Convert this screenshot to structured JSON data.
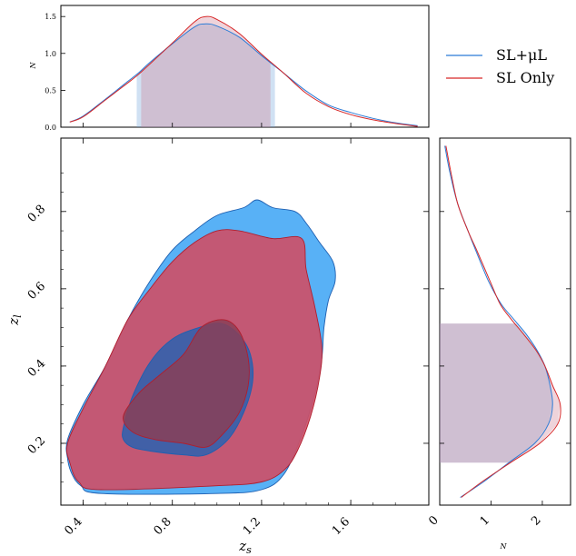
{
  "legend": {
    "items": [
      {
        "label": "SL+μL",
        "color": "#2b7bd6"
      },
      {
        "label": "SL Only",
        "color": "#d62728"
      }
    ]
  },
  "chart_data": [
    {
      "type": "line",
      "panel": "top-marginal",
      "xlim": [
        0.3,
        1.95
      ],
      "ylim": [
        0,
        1.65
      ],
      "ylabel": "N",
      "yticks": [
        "0.0",
        "0.5",
        "1.0",
        "1.5"
      ],
      "shaded_interval": {
        "SL+μL": [
          0.64,
          1.26
        ],
        "SL Only": [
          0.66,
          1.24
        ]
      },
      "series": [
        {
          "name": "SL+μL",
          "color": "#2b7bd6",
          "x": [
            0.34,
            0.4,
            0.5,
            0.6,
            0.65,
            0.7,
            0.8,
            0.9,
            0.95,
            1.0,
            1.1,
            1.2,
            1.3,
            1.4,
            1.5,
            1.6,
            1.7,
            1.8,
            1.9
          ],
          "y": [
            0.07,
            0.15,
            0.38,
            0.62,
            0.74,
            0.88,
            1.13,
            1.36,
            1.4,
            1.37,
            1.22,
            0.97,
            0.73,
            0.49,
            0.3,
            0.2,
            0.12,
            0.06,
            0.02
          ]
        },
        {
          "name": "SL Only",
          "color": "#d62728",
          "x": [
            0.34,
            0.4,
            0.5,
            0.6,
            0.65,
            0.7,
            0.8,
            0.9,
            0.95,
            1.0,
            1.1,
            1.2,
            1.3,
            1.4,
            1.5,
            1.6,
            1.7,
            1.8,
            1.9
          ],
          "y": [
            0.07,
            0.14,
            0.37,
            0.6,
            0.72,
            0.86,
            1.14,
            1.43,
            1.5,
            1.46,
            1.27,
            0.99,
            0.73,
            0.46,
            0.28,
            0.17,
            0.1,
            0.05,
            0.01
          ]
        }
      ]
    },
    {
      "type": "area",
      "panel": "joint-contours",
      "xlabel": "z_s",
      "ylabel": "z_l",
      "xlim": [
        0.3,
        1.95
      ],
      "ylim": [
        0.04,
        0.99
      ],
      "xticks": [
        "0.4",
        "0.8",
        "1.2",
        "1.6"
      ],
      "yticks": [
        "0.2",
        "0.4",
        "0.6",
        "0.8"
      ],
      "series": [
        {
          "name": "SL+μL",
          "color": "#4aaaf5",
          "level": "outer",
          "points": [
            [
              0.33,
              0.21
            ],
            [
              0.4,
              0.3
            ],
            [
              0.5,
              0.4
            ],
            [
              0.6,
              0.52
            ],
            [
              0.7,
              0.62
            ],
            [
              0.8,
              0.7
            ],
            [
              0.9,
              0.75
            ],
            [
              1.0,
              0.79
            ],
            [
              1.12,
              0.81
            ],
            [
              1.18,
              0.83
            ],
            [
              1.25,
              0.81
            ],
            [
              1.35,
              0.8
            ],
            [
              1.4,
              0.77
            ],
            [
              1.46,
              0.72
            ],
            [
              1.52,
              0.67
            ],
            [
              1.53,
              0.62
            ],
            [
              1.5,
              0.57
            ],
            [
              1.48,
              0.5
            ],
            [
              1.47,
              0.42
            ],
            [
              1.44,
              0.33
            ],
            [
              1.38,
              0.22
            ],
            [
              1.3,
              0.12
            ],
            [
              1.2,
              0.08
            ],
            [
              1.0,
              0.07
            ],
            [
              0.48,
              0.07
            ],
            [
              0.39,
              0.09
            ],
            [
              0.35,
              0.12
            ],
            [
              0.33,
              0.16
            ],
            [
              0.33,
              0.21
            ]
          ]
        },
        {
          "name": "SL Only",
          "color": "#cc5068",
          "level": "outer",
          "points": [
            [
              0.33,
              0.2
            ],
            [
              0.4,
              0.29
            ],
            [
              0.5,
              0.4
            ],
            [
              0.6,
              0.52
            ],
            [
              0.7,
              0.6
            ],
            [
              0.8,
              0.67
            ],
            [
              0.9,
              0.72
            ],
            [
              1.0,
              0.75
            ],
            [
              1.1,
              0.75
            ],
            [
              1.25,
              0.73
            ],
            [
              1.38,
              0.73
            ],
            [
              1.4,
              0.65
            ],
            [
              1.44,
              0.55
            ],
            [
              1.47,
              0.45
            ],
            [
              1.46,
              0.37
            ],
            [
              1.42,
              0.27
            ],
            [
              1.36,
              0.18
            ],
            [
              1.3,
              0.13
            ],
            [
              1.2,
              0.1
            ],
            [
              1.0,
              0.09
            ],
            [
              0.48,
              0.08
            ],
            [
              0.38,
              0.1
            ],
            [
              0.34,
              0.15
            ],
            [
              0.33,
              0.2
            ]
          ]
        },
        {
          "name": "SL+μL",
          "color": "#2a62b0",
          "level": "inner",
          "points": [
            [
              0.58,
              0.24
            ],
            [
              0.62,
              0.32
            ],
            [
              0.7,
              0.41
            ],
            [
              0.8,
              0.47
            ],
            [
              0.92,
              0.5
            ],
            [
              1.02,
              0.51
            ],
            [
              1.1,
              0.48
            ],
            [
              1.15,
              0.43
            ],
            [
              1.16,
              0.36
            ],
            [
              1.12,
              0.28
            ],
            [
              1.05,
              0.21
            ],
            [
              0.95,
              0.17
            ],
            [
              0.85,
              0.17
            ],
            [
              0.7,
              0.18
            ],
            [
              0.62,
              0.19
            ],
            [
              0.58,
              0.21
            ],
            [
              0.58,
              0.24
            ]
          ]
        },
        {
          "name": "SL Only",
          "color": "#8a3f57",
          "level": "inner",
          "points": [
            [
              0.58,
              0.27
            ],
            [
              0.65,
              0.33
            ],
            [
              0.75,
              0.38
            ],
            [
              0.85,
              0.43
            ],
            [
              0.93,
              0.5
            ],
            [
              1.03,
              0.52
            ],
            [
              1.1,
              0.49
            ],
            [
              1.14,
              0.42
            ],
            [
              1.14,
              0.35
            ],
            [
              1.1,
              0.28
            ],
            [
              1.02,
              0.22
            ],
            [
              0.95,
              0.19
            ],
            [
              0.85,
              0.2
            ],
            [
              0.72,
              0.21
            ],
            [
              0.62,
              0.23
            ],
            [
              0.58,
              0.27
            ]
          ]
        }
      ]
    },
    {
      "type": "line",
      "panel": "right-marginal",
      "xlim": [
        0,
        2.55
      ],
      "ylim": [
        0.04,
        0.99
      ],
      "xlabel": "N",
      "xticks": [
        "0",
        "1",
        "2"
      ],
      "shaded_interval": {
        "SL+μL": [
          0.15,
          0.51
        ],
        "SL Only": [
          0.15,
          0.51
        ]
      },
      "series": [
        {
          "name": "SL+μL",
          "color": "#2b7bd6",
          "y": [
            0.97,
            0.9,
            0.82,
            0.75,
            0.7,
            0.62,
            0.56,
            0.52,
            0.48,
            0.44,
            0.4,
            0.35,
            0.3,
            0.25,
            0.2,
            0.15,
            0.1,
            0.06
          ],
          "x": [
            0.1,
            0.2,
            0.35,
            0.55,
            0.7,
            0.95,
            1.2,
            1.45,
            1.7,
            1.9,
            2.05,
            2.15,
            2.2,
            2.12,
            1.85,
            1.35,
            0.85,
            0.4
          ]
        },
        {
          "name": "SL Only",
          "color": "#d62728",
          "y": [
            0.97,
            0.9,
            0.82,
            0.75,
            0.7,
            0.62,
            0.56,
            0.52,
            0.48,
            0.44,
            0.4,
            0.35,
            0.3,
            0.25,
            0.2,
            0.15,
            0.1,
            0.06
          ],
          "x": [
            0.12,
            0.22,
            0.35,
            0.55,
            0.72,
            0.98,
            1.18,
            1.4,
            1.65,
            1.88,
            2.05,
            2.2,
            2.35,
            2.3,
            1.95,
            1.38,
            0.82,
            0.42
          ]
        }
      ]
    }
  ]
}
